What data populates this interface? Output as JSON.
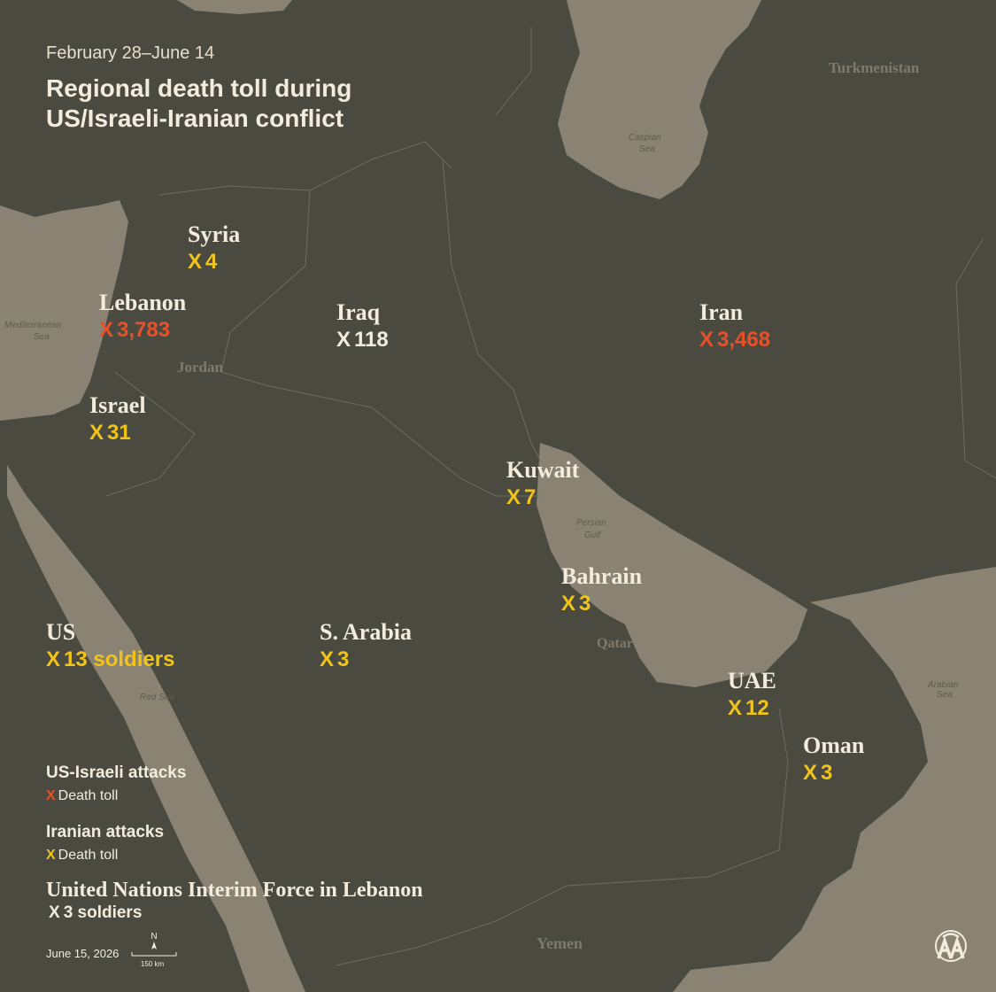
{
  "header": {
    "date_range": "February 28–June 14",
    "title_line1": "Regional death toll during",
    "title_line2": "US/Israeli-Iranian conflict"
  },
  "marker": "X",
  "countries": [
    {
      "name": "Syria",
      "toll": "4",
      "color": "#f0c419"
    },
    {
      "name": "Lebanon",
      "toll": "3,783",
      "color": "#e8502a"
    },
    {
      "name": "Iraq",
      "toll": "118",
      "color": "#f3ecdc"
    },
    {
      "name": "Iran",
      "toll": "3,468",
      "color": "#e8502a"
    },
    {
      "name": "Israel",
      "toll": "31",
      "color": "#f0c419"
    },
    {
      "name": "Kuwait",
      "toll": "7",
      "color": "#f0c419"
    },
    {
      "name": "Bahrain",
      "toll": "3",
      "color": "#f0c419"
    },
    {
      "name": "US",
      "toll": "13 soldiers",
      "color": "#f0c419"
    },
    {
      "name": "S. Arabia",
      "toll": "3",
      "color": "#f0c419"
    },
    {
      "name": "UAE",
      "toll": "12",
      "color": "#f0c419"
    },
    {
      "name": "Oman",
      "toll": "3",
      "color": "#f0c419"
    }
  ],
  "map_labels": {
    "turkmenistan": "Turkmenistan",
    "caspian": "Caspian",
    "caspian_sea": "Sea",
    "mediterranean": "Mediterranean",
    "mediterranean_sea": "Sea",
    "jordan": "Jordan",
    "persian": "Persian",
    "gulf": "Gulf",
    "qatar": "Qatar",
    "red_sea": "Red Sea",
    "arabian": "Arabian",
    "arabian_sea": "Sea",
    "yemen": "Yemen"
  },
  "legend": {
    "us_israeli": {
      "title": "US-Israeli attacks",
      "label": "Death toll",
      "color": "#e8502a"
    },
    "iranian": {
      "title": "Iranian attacks",
      "label": "Death toll",
      "color": "#f0c419"
    },
    "unifil": {
      "title": "United Nations Interim Force in Lebanon",
      "toll": "3 soldiers",
      "color": "#f3ecdc"
    }
  },
  "footer": {
    "date": "June 15, 2026",
    "north": "N",
    "scale": "150 km"
  }
}
